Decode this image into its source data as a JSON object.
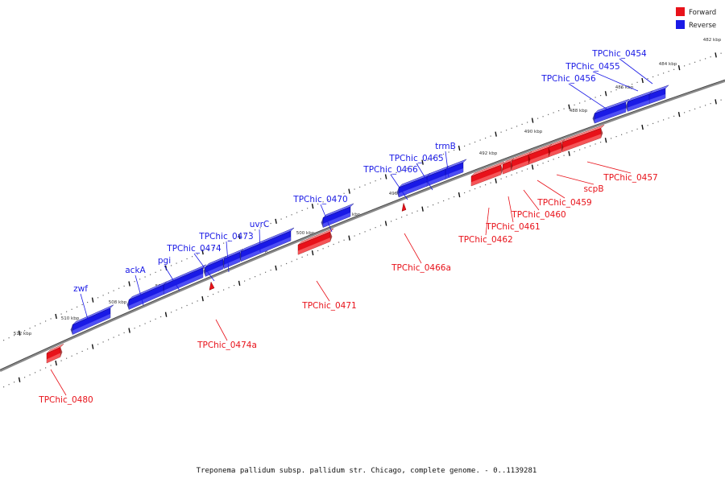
{
  "colors": {
    "forward": "#e8121a",
    "forward_light": "#ff8a8a",
    "forward_dark": "#8a0000",
    "reverse": "#1a1ae6",
    "reverse_light": "#7a7aff",
    "reverse_dark": "#00007a",
    "backbone": "#8a8a8a"
  },
  "legend": {
    "forward": "Forward",
    "reverse": "Reverse"
  },
  "caption": "Treponema pallidum subsp. pallidum str. Chicago, complete genome. - 0..1139281",
  "ruler_labels": [
    "482 kbp",
    "484 kbp",
    "486 kbp",
    "488 kbp",
    "490 kbp",
    "492 kbp",
    "494 kbp",
    "496 kbp",
    "498 kbp",
    "500 kbp",
    "502 kbp",
    "504 kbp",
    "506 kbp",
    "508 kbp",
    "510 kbp",
    "512 kbp"
  ],
  "genes": [
    {
      "id": "g454",
      "label": "TPChic_0454",
      "strand": "reverse"
    },
    {
      "id": "g455",
      "label": "TPChic_0455",
      "strand": "reverse"
    },
    {
      "id": "g456",
      "label": "TPChic_0456",
      "strand": "reverse"
    },
    {
      "id": "g457",
      "label": "TPChic_0457",
      "strand": "forward"
    },
    {
      "id": "gscpB",
      "label": "scpB",
      "strand": "forward"
    },
    {
      "id": "g459",
      "label": "TPChic_0459",
      "strand": "forward"
    },
    {
      "id": "g460",
      "label": "TPChic_0460",
      "strand": "forward"
    },
    {
      "id": "g461",
      "label": "TPChic_0461",
      "strand": "forward"
    },
    {
      "id": "g462",
      "label": "TPChic_0462",
      "strand": "forward"
    },
    {
      "id": "gtrmB",
      "label": "trmB",
      "strand": "reverse"
    },
    {
      "id": "g465",
      "label": "TPChic_0465",
      "strand": "reverse"
    },
    {
      "id": "g466",
      "label": "TPChic_0466",
      "strand": "reverse"
    },
    {
      "id": "g466a",
      "label": "TPChic_0466a",
      "strand": "forward"
    },
    {
      "id": "g470",
      "label": "TPChic_0470",
      "strand": "reverse"
    },
    {
      "id": "g471",
      "label": "TPChic_0471",
      "strand": "forward"
    },
    {
      "id": "guvrC",
      "label": "uvrC",
      "strand": "reverse"
    },
    {
      "id": "g473",
      "label": "TPChic_0473",
      "strand": "reverse"
    },
    {
      "id": "g474",
      "label": "TPChic_0474",
      "strand": "reverse"
    },
    {
      "id": "g474a",
      "label": "TPChic_0474a",
      "strand": "forward"
    },
    {
      "id": "gpgi",
      "label": "pgi",
      "strand": "reverse"
    },
    {
      "id": "gackA",
      "label": "ackA",
      "strand": "reverse"
    },
    {
      "id": "gzwf",
      "label": "zwf",
      "strand": "reverse"
    },
    {
      "id": "g480",
      "label": "TPChic_0480",
      "strand": "forward"
    }
  ]
}
